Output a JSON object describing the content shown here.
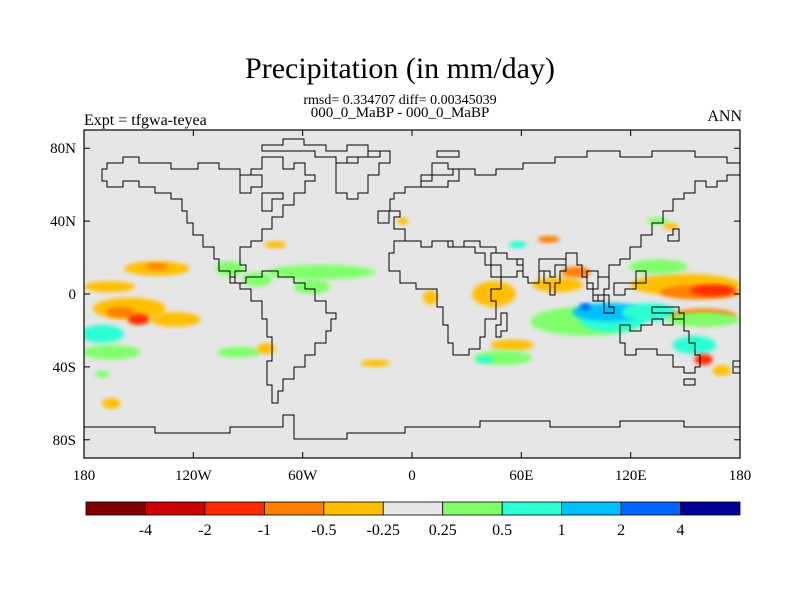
{
  "chart_data": {
    "type": "heatmap",
    "title": "Precipitation (in mm/day)",
    "stats_line": "rmsd= 0.334707 diff= 0.00345039",
    "experiment_pair": "000_0_MaBP - 000_0_MaBP",
    "expt_label": "Expt = tfgwa-teyea",
    "season_label": "ANN",
    "x_range": [
      -180,
      180
    ],
    "y_range": [
      -90,
      90
    ],
    "x_ticks": [
      {
        "value": -180,
        "label": "180"
      },
      {
        "value": -120,
        "label": "120W"
      },
      {
        "value": -60,
        "label": "60W"
      },
      {
        "value": 0,
        "label": "0"
      },
      {
        "value": 60,
        "label": "60E"
      },
      {
        "value": 120,
        "label": "120E"
      },
      {
        "value": 180,
        "label": "180"
      }
    ],
    "y_ticks": [
      {
        "value": 80,
        "label": "80N"
      },
      {
        "value": 40,
        "label": "40N"
      },
      {
        "value": 0,
        "label": "0"
      },
      {
        "value": -40,
        "label": "40S"
      },
      {
        "value": -80,
        "label": "80S"
      }
    ],
    "colorbar": {
      "colors": [
        "#7f0000",
        "#cc0000",
        "#ff2a00",
        "#ff7f00",
        "#ffbf00",
        "#e6e6e6",
        "#7fff6a",
        "#2affd5",
        "#00bfff",
        "#0066ff",
        "#000099"
      ],
      "labels": [
        "-4",
        "-2",
        "-1",
        "-0.5",
        "-0.25",
        "0.25",
        "0.5",
        "1",
        "2",
        "4"
      ]
    },
    "background_color": "#e6e6e6",
    "anomaly_regions": [
      {
        "lon": -166,
        "lat": 4,
        "rlon": 14,
        "rlat": 3,
        "level": 4
      },
      {
        "lon": -155,
        "lat": -8,
        "rlon": 20,
        "rlat": 6,
        "level": 4
      },
      {
        "lon": -160,
        "lat": -10,
        "rlon": 8,
        "rlat": 3,
        "level": 3
      },
      {
        "lon": -150,
        "lat": -14,
        "rlon": 6,
        "rlat": 3,
        "level": 2
      },
      {
        "lon": -130,
        "lat": -14,
        "rlon": 14,
        "rlat": 4,
        "level": 4
      },
      {
        "lon": -140,
        "lat": 14,
        "rlon": 18,
        "rlat": 4,
        "level": 4
      },
      {
        "lon": -140,
        "lat": 15,
        "rlon": 6,
        "rlat": 2,
        "level": 3
      },
      {
        "lon": -100,
        "lat": 14,
        "rlon": 8,
        "rlat": 4,
        "level": 6
      },
      {
        "lon": -85,
        "lat": 8,
        "rlon": 8,
        "rlat": 4,
        "level": 6
      },
      {
        "lon": -50,
        "lat": 12,
        "rlon": 30,
        "rlat": 4,
        "level": 6
      },
      {
        "lon": -55,
        "lat": 4,
        "rlon": 10,
        "rlat": 4,
        "level": 6
      },
      {
        "lon": -75,
        "lat": 27,
        "rlon": 6,
        "rlat": 2,
        "level": 4
      },
      {
        "lon": -170,
        "lat": -22,
        "rlon": 12,
        "rlat": 5,
        "level": 7
      },
      {
        "lon": -165,
        "lat": -32,
        "rlon": 16,
        "rlat": 4,
        "level": 6
      },
      {
        "lon": -165,
        "lat": -60,
        "rlon": 5,
        "rlat": 3,
        "level": 4
      },
      {
        "lon": -170,
        "lat": -44,
        "rlon": 4,
        "rlat": 2,
        "level": 6
      },
      {
        "lon": -95,
        "lat": -32,
        "rlon": 12,
        "rlat": 3,
        "level": 6
      },
      {
        "lon": -80,
        "lat": -30,
        "rlon": 5,
        "rlat": 3,
        "level": 4
      },
      {
        "lon": -20,
        "lat": -38,
        "rlon": 8,
        "rlat": 2,
        "level": 4
      },
      {
        "lon": 10,
        "lat": -2,
        "rlon": 4,
        "rlat": 4,
        "level": 4
      },
      {
        "lon": 45,
        "lat": 0,
        "rlon": 12,
        "rlat": 7,
        "level": 4
      },
      {
        "lon": 55,
        "lat": -28,
        "rlon": 12,
        "rlat": 3,
        "level": 4
      },
      {
        "lon": 50,
        "lat": -35,
        "rlon": 16,
        "rlat": 4,
        "level": 6
      },
      {
        "lon": 40,
        "lat": -36,
        "rlon": 5,
        "rlat": 2,
        "level": 7
      },
      {
        "lon": 95,
        "lat": -15,
        "rlon": 30,
        "rlat": 8,
        "level": 6
      },
      {
        "lon": 110,
        "lat": -14,
        "rlon": 18,
        "rlat": 7,
        "level": 7
      },
      {
        "lon": 108,
        "lat": -10,
        "rlon": 20,
        "rlat": 5,
        "level": 8
      },
      {
        "lon": 130,
        "lat": -10,
        "rlon": 15,
        "rlat": 5,
        "level": 7
      },
      {
        "lon": 95,
        "lat": -7,
        "rlon": 3,
        "rlat": 2,
        "level": 9
      },
      {
        "lon": 150,
        "lat": 5,
        "rlon": 30,
        "rlat": 6,
        "level": 4
      },
      {
        "lon": 158,
        "lat": 1,
        "rlon": 22,
        "rlat": 4,
        "level": 3
      },
      {
        "lon": 165,
        "lat": 2,
        "rlon": 12,
        "rlat": 3,
        "level": 2
      },
      {
        "lon": 160,
        "lat": -12,
        "rlon": 18,
        "rlat": 4,
        "level": 3
      },
      {
        "lon": 160,
        "lat": -14,
        "rlon": 20,
        "rlat": 4,
        "level": 6
      },
      {
        "lon": 80,
        "lat": 5,
        "rlon": 14,
        "rlat": 4,
        "level": 4
      },
      {
        "lon": 90,
        "lat": 12,
        "rlon": 8,
        "rlat": 3,
        "level": 3
      },
      {
        "lon": 135,
        "lat": 15,
        "rlon": 16,
        "rlat": 4,
        "level": 6
      },
      {
        "lon": 155,
        "lat": -28,
        "rlon": 12,
        "rlat": 5,
        "level": 7
      },
      {
        "lon": 160,
        "lat": -36,
        "rlon": 5,
        "rlat": 3,
        "level": 2
      },
      {
        "lon": 170,
        "lat": -42,
        "rlon": 5,
        "rlat": 3,
        "level": 4
      },
      {
        "lon": 135,
        "lat": 40,
        "rlon": 6,
        "rlat": 2,
        "level": 6
      },
      {
        "lon": 142,
        "lat": 37,
        "rlon": 4,
        "rlat": 2,
        "level": 4
      },
      {
        "lon": -5,
        "lat": 40,
        "rlon": 3,
        "rlat": 2,
        "level": 4
      },
      {
        "lon": 58,
        "lat": 27,
        "rlon": 5,
        "rlat": 2,
        "level": 7
      },
      {
        "lon": 75,
        "lat": 30,
        "rlon": 6,
        "rlat": 2,
        "level": 3
      }
    ]
  }
}
